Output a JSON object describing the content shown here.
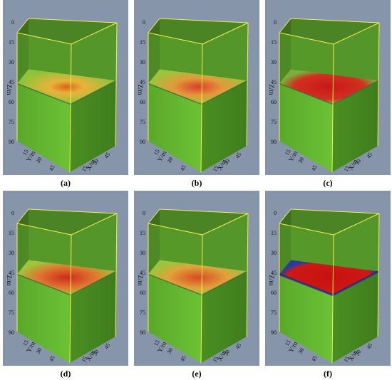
{
  "panels": [
    {
      "caption": "(a)"
    },
    {
      "caption": "(b)"
    },
    {
      "caption": "(c)"
    },
    {
      "caption": "(d)"
    },
    {
      "caption": "(e)"
    },
    {
      "caption": "(f)"
    }
  ],
  "z_axis": {
    "label": "Z/m",
    "ticks": [
      "0",
      "15",
      "30",
      "45",
      "60",
      "75",
      "90"
    ]
  },
  "y_axis": {
    "label": "Y/m",
    "ticks": [
      "15",
      "30",
      "45"
    ]
  },
  "x_axis": {
    "label": "X/m",
    "ticks": [
      "15",
      "30",
      "45"
    ]
  }
}
